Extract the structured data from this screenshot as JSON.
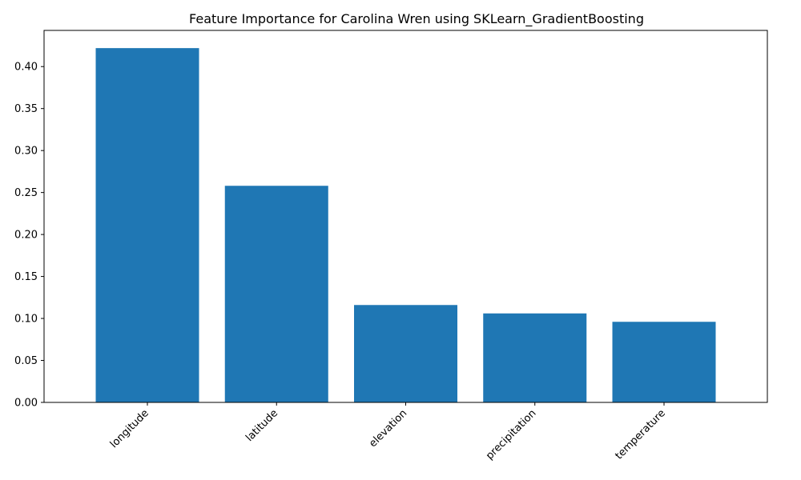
{
  "chart_data": {
    "type": "bar",
    "title": "Feature Importance for Carolina Wren using SKLearn_GradientBoosting",
    "xlabel": "",
    "ylabel": "",
    "categories": [
      "longitude",
      "latitude",
      "elevation",
      "precipitation",
      "temperature"
    ],
    "values": [
      0.422,
      0.258,
      0.116,
      0.106,
      0.096
    ],
    "ylim": [
      0,
      0.4431
    ],
    "yticks": [
      "0.00",
      "0.05",
      "0.10",
      "0.15",
      "0.20",
      "0.25",
      "0.30",
      "0.35",
      "0.40"
    ],
    "bar_color": "#1f77b4",
    "grid": false,
    "legend": "none"
  }
}
